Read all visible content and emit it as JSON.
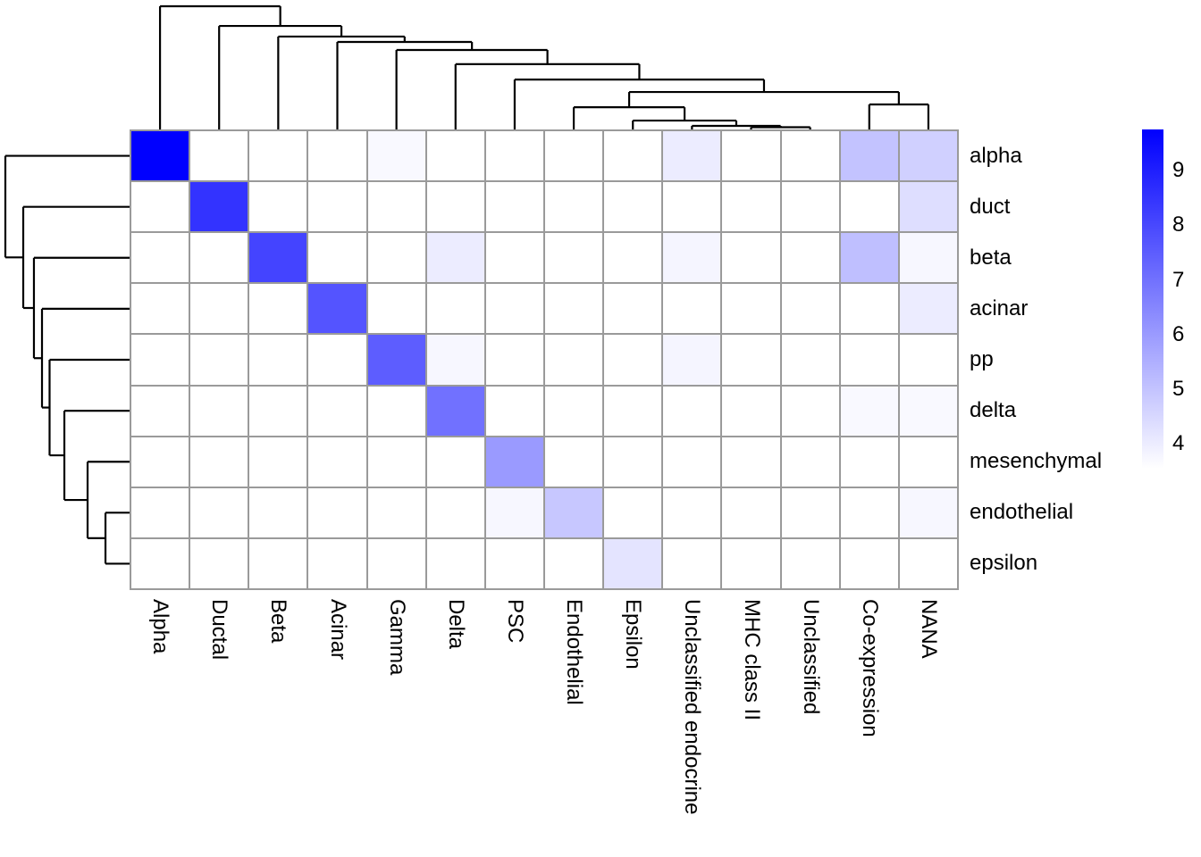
{
  "chart_data": {
    "type": "heatmap",
    "description": "Clustered heatmap (pheatmap style) with row and column dendrograms and a white-to-blue color legend",
    "row_labels": [
      "alpha",
      "duct",
      "beta",
      "acinar",
      "pp",
      "delta",
      "mesenchymal",
      "endothelial",
      "epsilon"
    ],
    "col_labels": [
      "Alpha",
      "Ductal",
      "Beta",
      "Acinar",
      "Gamma",
      "Delta",
      "PSC",
      "Endothelial",
      "Epsilon",
      "Unclassified endocrine",
      "MHC class II",
      "Unclassified",
      "Co-expression",
      "NANA"
    ],
    "matrix": [
      [
        9.75,
        3.55,
        3.55,
        3.55,
        3.7,
        3.55,
        3.55,
        3.55,
        3.55,
        4.0,
        3.55,
        3.55,
        5.0,
        4.7
      ],
      [
        3.55,
        8.5,
        3.55,
        3.55,
        3.55,
        3.55,
        3.55,
        3.55,
        3.55,
        3.55,
        3.55,
        3.55,
        3.55,
        4.35
      ],
      [
        3.55,
        3.55,
        8.1,
        3.55,
        3.55,
        4.0,
        3.55,
        3.55,
        3.55,
        3.8,
        3.55,
        3.55,
        5.1,
        3.75
      ],
      [
        3.55,
        3.55,
        3.55,
        7.7,
        3.55,
        3.55,
        3.55,
        3.55,
        3.55,
        3.55,
        3.55,
        3.55,
        3.55,
        4.0
      ],
      [
        3.55,
        3.55,
        3.55,
        3.55,
        7.5,
        3.75,
        3.55,
        3.55,
        3.55,
        3.8,
        3.55,
        3.55,
        3.55,
        3.55
      ],
      [
        3.55,
        3.55,
        3.55,
        3.55,
        3.55,
        7.0,
        3.55,
        3.55,
        3.55,
        3.55,
        3.55,
        3.55,
        3.7,
        3.7
      ],
      [
        3.55,
        3.55,
        3.55,
        3.55,
        3.55,
        3.55,
        6.0,
        3.55,
        3.55,
        3.55,
        3.55,
        3.55,
        3.55,
        3.55
      ],
      [
        3.55,
        3.55,
        3.55,
        3.55,
        3.55,
        3.55,
        3.75,
        4.9,
        3.55,
        3.55,
        3.55,
        3.55,
        3.55,
        3.75
      ],
      [
        3.55,
        3.55,
        3.55,
        3.55,
        3.55,
        3.55,
        3.55,
        3.55,
        4.2,
        3.55,
        3.55,
        3.55,
        3.55,
        3.55
      ]
    ],
    "color_scale": {
      "min_value": 3.55,
      "max_value": 9.75,
      "min_color": "#FFFFFF",
      "max_color": "#0000FE",
      "grid_color": "#9A9A9A",
      "line_color": "#000000"
    },
    "legend": {
      "ticks": [
        9,
        8,
        7,
        6,
        5,
        4
      ],
      "position": "right"
    },
    "col_dendrogram": {
      "h": 1.0,
      "c": [
        {
          "leaf": "Alpha"
        },
        {
          "h": 0.84,
          "c": [
            {
              "leaf": "Ductal"
            },
            {
              "h": 0.754,
              "c": [
                {
                  "leaf": "Beta"
                },
                {
                  "h": 0.71,
                  "c": [
                    {
                      "leaf": "Acinar"
                    },
                    {
                      "h": 0.645,
                      "c": [
                        {
                          "leaf": "Gamma"
                        },
                        {
                          "h": 0.53,
                          "c": [
                            {
                              "leaf": "Delta"
                            },
                            {
                              "h": 0.405,
                              "c": [
                                {
                                  "leaf": "PSC"
                                },
                                {
                                  "h": 0.304,
                                  "c": [
                                    {
                                      "h": 0.18,
                                      "c": [
                                        {
                                          "leaf": "Endothelial"
                                        },
                                        {
                                          "h": 0.072,
                                          "c": [
                                            {
                                              "leaf": "Epsilon"
                                            },
                                            {
                                              "h": 0.029,
                                              "c": [
                                                {
                                                  "leaf": "Unclassified endocrine"
                                                },
                                                {
                                                  "h": 0.018,
                                                  "c": [
                                                    {
                                                      "leaf": "MHC class II"
                                                    },
                                                    {
                                                      "leaf": "Unclassified"
                                                    }
                                                  ]
                                                }
                                              ]
                                            }
                                          ]
                                        }
                                      ]
                                    },
                                    {
                                      "h": 0.203,
                                      "c": [
                                        {
                                          "leaf": "Co-expression"
                                        },
                                        {
                                          "leaf": "NANA"
                                        }
                                      ]
                                    }
                                  ]
                                }
                              ]
                            }
                          ]
                        }
                      ]
                    }
                  ]
                }
              ]
            }
          ]
        }
      ]
    },
    "row_dendrogram": {
      "h": 1.0,
      "c": [
        {
          "leaf": "alpha"
        },
        {
          "h": 0.856,
          "c": [
            {
              "leaf": "duct"
            },
            {
              "h": 0.77,
              "c": [
                {
                  "leaf": "beta"
                },
                {
                  "h": 0.705,
                  "c": [
                    {
                      "leaf": "acinar"
                    },
                    {
                      "h": 0.644,
                      "c": [
                        {
                          "leaf": "pp"
                        },
                        {
                          "h": 0.525,
                          "c": [
                            {
                              "leaf": "delta"
                            },
                            {
                              "h": 0.338,
                              "c": [
                                {
                                  "leaf": "mesenchymal"
                                },
                                {
                                  "h": 0.194,
                                  "c": [
                                    {
                                      "leaf": "endothelial"
                                    },
                                    {
                                      "leaf": "epsilon"
                                    }
                                  ]
                                }
                              ]
                            }
                          ]
                        }
                      ]
                    }
                  ]
                }
              ]
            }
          ]
        }
      ]
    }
  }
}
